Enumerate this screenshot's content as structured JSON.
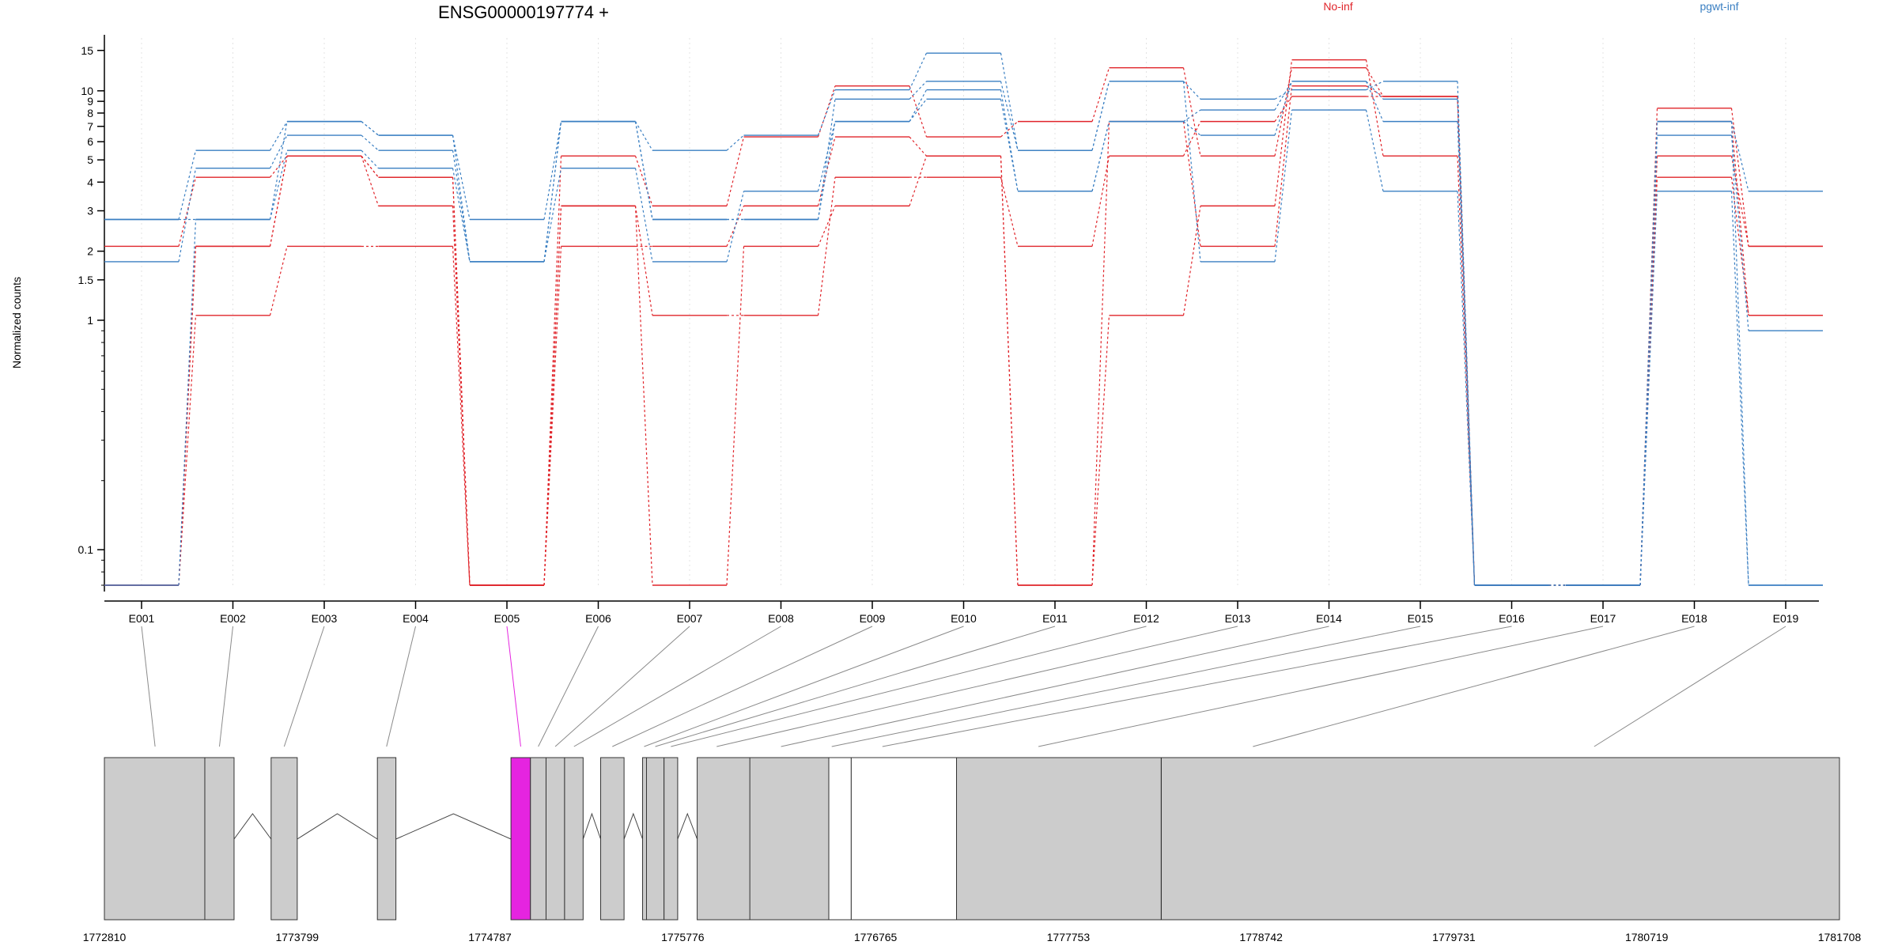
{
  "chart_data": {
    "type": "line",
    "title": "ENSG00000197774 +",
    "ylabel": "Normalized counts",
    "y_scale": "log",
    "ylim": [
      0.07,
      17
    ],
    "y_ticks": [
      {
        "value": 15,
        "label": "15"
      },
      {
        "value": 10,
        "label": "10"
      },
      {
        "value": 9,
        "label": "9"
      },
      {
        "value": 8,
        "label": "8"
      },
      {
        "value": 7,
        "label": "7"
      },
      {
        "value": 6,
        "label": "6"
      },
      {
        "value": 5,
        "label": "5"
      },
      {
        "value": 4,
        "label": "4"
      },
      {
        "value": 3,
        "label": "3"
      },
      {
        "value": 2,
        "label": "2"
      },
      {
        "value": 1.5,
        "label": "1.5"
      },
      {
        "value": 1,
        "label": "1"
      },
      {
        "value": 0.1,
        "label": "0.1"
      }
    ],
    "grid": "vertical dotted",
    "legend_position": "top",
    "legend": [
      {
        "label": "No-inf",
        "color": "#e0242a"
      },
      {
        "label": "pgwt-inf",
        "color": "#3a7fc2"
      }
    ],
    "categories": [
      "E001",
      "E002",
      "E003",
      "E004",
      "E005",
      "E006",
      "E007",
      "E008",
      "E009",
      "E010",
      "E011",
      "E012",
      "E013",
      "E014",
      "E015",
      "E016",
      "E017",
      "E018",
      "E019"
    ],
    "series": [
      {
        "group": "No-inf",
        "color": "#e0242a",
        "values": [
          0.07,
          2.1,
          5.2,
          3.15,
          0.07,
          5.2,
          3.15,
          6.3,
          10.5,
          6.3,
          7.35,
          12.6,
          5.2,
          12.6,
          9.45,
          0.07,
          0.07,
          8.4,
          2.1
        ]
      },
      {
        "group": "No-inf",
        "color": "#e0242a",
        "values": [
          0.07,
          1.05,
          2.1,
          2.1,
          0.07,
          2.1,
          2.1,
          3.15,
          6.3,
          5.2,
          0.07,
          1.05,
          3.15,
          13.65,
          5.2,
          0.07,
          0.07,
          4.2,
          1.05
        ]
      },
      {
        "group": "No-inf",
        "color": "#e0242a",
        "values": [
          2.1,
          4.2,
          5.2,
          4.2,
          0.07,
          3.15,
          1.05,
          1.05,
          4.2,
          4.2,
          2.1,
          5.2,
          7.35,
          9.45,
          9.45,
          0.07,
          0.07,
          5.2,
          2.1
        ]
      },
      {
        "group": "No-inf",
        "color": "#e0242a",
        "values": [
          0.07,
          2.1,
          5.2,
          4.2,
          0.07,
          3.15,
          0.07,
          2.1,
          3.15,
          5.2,
          0.07,
          7.35,
          2.1,
          10.5,
          9.45,
          0.07,
          0.07,
          7.35,
          1.05
        ]
      },
      {
        "group": "pgwt-inf",
        "color": "#3a7fc2",
        "values": [
          2.75,
          5.5,
          7.35,
          6.4,
          2.75,
          7.35,
          5.5,
          6.4,
          10.1,
          14.6,
          5.5,
          11.0,
          9.2,
          10.1,
          11.0,
          0.07,
          0.07,
          7.35,
          3.65
        ]
      },
      {
        "group": "pgwt-inf",
        "color": "#3a7fc2",
        "values": [
          1.8,
          4.6,
          6.4,
          5.5,
          1.8,
          4.6,
          1.8,
          3.65,
          7.35,
          10.1,
          3.65,
          7.35,
          6.4,
          11.0,
          9.2,
          0.07,
          0.07,
          6.4,
          0.9
        ]
      },
      {
        "group": "pgwt-inf",
        "color": "#3a7fc2",
        "values": [
          2.75,
          2.75,
          5.5,
          4.6,
          1.8,
          7.35,
          2.75,
          2.75,
          9.2,
          11.0,
          5.5,
          11.0,
          1.8,
          8.25,
          3.65,
          0.07,
          0.07,
          3.65,
          0.07
        ]
      },
      {
        "group": "pgwt-inf",
        "color": "#3a7fc2",
        "values": [
          0.07,
          2.75,
          7.35,
          6.4,
          1.8,
          7.35,
          2.75,
          2.75,
          7.35,
          9.2,
          3.65,
          7.35,
          8.25,
          11.0,
          7.35,
          0.07,
          0.07,
          7.35,
          0.07
        ]
      }
    ],
    "highlighted_exon": "E005",
    "highlight_color": "#e524e0",
    "genomic_axis": {
      "start": 1772810,
      "end": 1781708,
      "tick_labels": [
        "1772810",
        "1773799",
        "1774787",
        "1775776",
        "1776765",
        "1777753",
        "1778742",
        "1779731",
        "1780719",
        "1781708"
      ]
    },
    "exon_model": [
      {
        "id": "E001",
        "start": 1772810,
        "end": 1773325
      },
      {
        "id": "E002",
        "start": 1773325,
        "end": 1773475
      },
      {
        "id": "E003",
        "start": 1773665,
        "end": 1773799
      },
      {
        "id": "E004",
        "start": 1774210,
        "end": 1774305
      },
      {
        "id": "E005",
        "start": 1774895,
        "end": 1774995
      },
      {
        "id": "E006",
        "start": 1774995,
        "end": 1775075
      },
      {
        "id": "E007",
        "start": 1775075,
        "end": 1775170
      },
      {
        "id": "E008",
        "start": 1775170,
        "end": 1775265
      },
      {
        "id": "E009",
        "start": 1775355,
        "end": 1775475
      },
      {
        "id": "E010",
        "start": 1775570,
        "end": 1775590
      },
      {
        "id": "E011",
        "start": 1775590,
        "end": 1775680
      },
      {
        "id": "E012",
        "start": 1775680,
        "end": 1775750
      },
      {
        "id": "E013",
        "start": 1775850,
        "end": 1776120
      },
      {
        "id": "E014",
        "start": 1776120,
        "end": 1776525
      },
      {
        "id": "E015",
        "start": 1776525,
        "end": 1776640
      },
      {
        "id": "E016",
        "start": 1776640,
        "end": 1777180
      },
      {
        "id": "E017",
        "start": 1777180,
        "end": 1778230
      },
      {
        "id": "E018",
        "start": 1778230,
        "end": 1781708
      },
      {
        "id": "E019",
        "start": 1781708,
        "end": 1781708
      }
    ],
    "exon_boxes": [
      {
        "start": 1772810,
        "end": 1773325,
        "exon": "E001"
      },
      {
        "start": 1773325,
        "end": 1773475,
        "exon": "E002"
      },
      {
        "start": 1773665,
        "end": 1773799,
        "exon": "E003"
      },
      {
        "start": 1774210,
        "end": 1774305,
        "exon": "E004"
      },
      {
        "start": 1774895,
        "end": 1774995,
        "exon": "E005"
      },
      {
        "start": 1774995,
        "end": 1775075,
        "exon": "E006"
      },
      {
        "start": 1775075,
        "end": 1775170,
        "exon": "E007"
      },
      {
        "start": 1775170,
        "end": 1775265,
        "exon": "E008"
      },
      {
        "start": 1775355,
        "end": 1775475,
        "exon": "E009"
      },
      {
        "start": 1775570,
        "end": 1775680,
        "exon": "E010-E011"
      },
      {
        "start": 1775680,
        "end": 1775750,
        "exon": "E012"
      },
      {
        "start": 1775850,
        "end": 1776525,
        "exon": "E013-E014"
      },
      {
        "start": 1776525,
        "end": 1776640,
        "exon": "E015",
        "fill": "none"
      },
      {
        "start": 1776640,
        "end": 1777180,
        "exon": "E016",
        "fill": "none"
      },
      {
        "start": 1777180,
        "end": 1778230,
        "exon": "E017"
      },
      {
        "start": 1778230,
        "end": 1781708,
        "exon": "E018-E019"
      }
    ],
    "exon_label_targets": [
      1773070,
      1773400,
      1773732,
      1774257,
      1774945,
      1775035,
      1775122,
      1775218,
      1775415,
      1775578,
      1775635,
      1775715,
      1775950,
      1776280,
      1776540,
      1776800,
      1777600,
      1778700,
      1780450
    ],
    "intron_arcs": [
      {
        "start": 1773475,
        "end": 1773665
      },
      {
        "start": 1773799,
        "end": 1774210
      },
      {
        "start": 1774305,
        "end": 1774895
      },
      {
        "start": 1775265,
        "end": 1775355
      },
      {
        "start": 1775475,
        "end": 1775570
      },
      {
        "start": 1775750,
        "end": 1775850
      }
    ]
  }
}
